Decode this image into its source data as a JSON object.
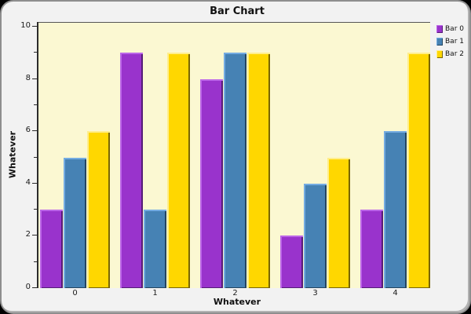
{
  "window": {
    "outside_background": "#000000",
    "frame_background": "#F2F2F2",
    "frame_border_color": "#8E8E8E"
  },
  "chart_data": {
    "type": "bar",
    "title": "Bar Chart",
    "xlabel": "Whatever",
    "ylabel": "Whatever",
    "categories": [
      "0",
      "1",
      "2",
      "3",
      "4"
    ],
    "series": [
      {
        "name": "Bar 0",
        "values": [
          3,
          9,
          8,
          2,
          3
        ],
        "color": "#9933CC",
        "highlight": "#BC66E8",
        "shadow": "#551C77"
      },
      {
        "name": "Bar 1",
        "values": [
          5,
          3,
          9,
          4,
          6
        ],
        "color": "#4682B4",
        "highlight": "#74ACE2",
        "shadow": "#24455F"
      },
      {
        "name": "Bar 2",
        "values": [
          6,
          9,
          9,
          5,
          9
        ],
        "color": "#FFD700",
        "highlight": "#FFEE8C",
        "shadow": "#7A6600"
      }
    ],
    "ylim": [
      0,
      10
    ],
    "y_major_ticks": [
      0,
      2,
      4,
      6,
      8,
      10
    ],
    "y_minor_ticks": [
      1,
      3,
      5,
      7,
      9
    ],
    "grid": false,
    "legend_position": "top-right",
    "plot_background": "#FBF8D2"
  }
}
